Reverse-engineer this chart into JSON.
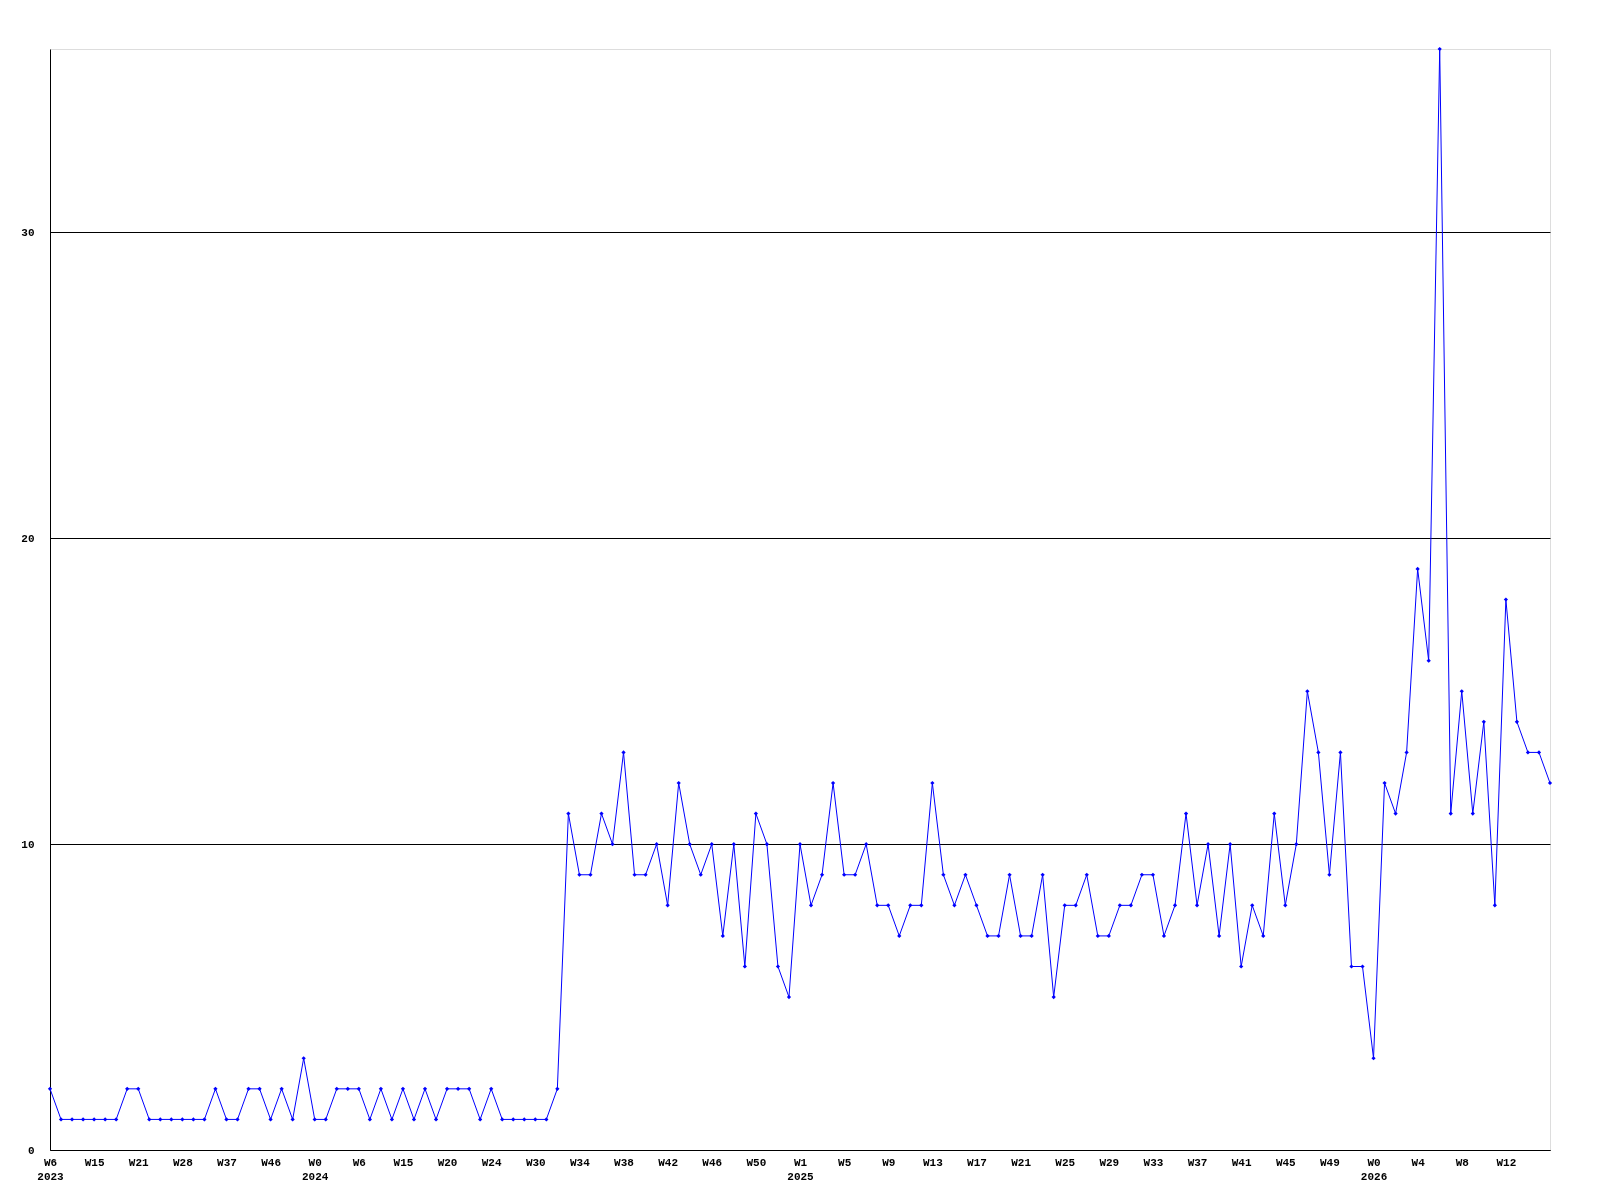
{
  "chart_data": {
    "type": "line",
    "categories": [
      "W6\n2023",
      null,
      null,
      null,
      "W15",
      null,
      null,
      null,
      "W21",
      null,
      null,
      null,
      "W28",
      null,
      null,
      null,
      "W37",
      null,
      null,
      null,
      "W46",
      null,
      null,
      null,
      "W0\n2024",
      null,
      null,
      null,
      "W6",
      null,
      null,
      null,
      "W15",
      null,
      null,
      null,
      "W20",
      null,
      null,
      null,
      "W24",
      null,
      null,
      null,
      "W30",
      null,
      null,
      null,
      "W34",
      null,
      null,
      null,
      "W38",
      null,
      null,
      null,
      "W42",
      null,
      null,
      null,
      "W46",
      null,
      null,
      null,
      "W50",
      null,
      null,
      null,
      "W1\n2025",
      null,
      null,
      null,
      "W5",
      null,
      null,
      null,
      "W9",
      null,
      null,
      null,
      "W13",
      null,
      null,
      null,
      "W17",
      null,
      null,
      null,
      "W21",
      null,
      null,
      null,
      "W25",
      null,
      null,
      null,
      "W29",
      null,
      null,
      null,
      "W33",
      null,
      null,
      null,
      "W37",
      null,
      null,
      null,
      "W41",
      null,
      null,
      null,
      "W45",
      null,
      null,
      null,
      "W49",
      null,
      null,
      null,
      "W0\n2026",
      null,
      null,
      null,
      "W4",
      null,
      null,
      null,
      "W8",
      null,
      null,
      null,
      "W12",
      null,
      null,
      null,
      null
    ],
    "series": [
      {
        "color": "#0000ff",
        "values": [
          2,
          1,
          1,
          1,
          1,
          1,
          1,
          2,
          2,
          1,
          1,
          1,
          1,
          1,
          1,
          2,
          1,
          1,
          2,
          2,
          1,
          2,
          1,
          3,
          1,
          1,
          2,
          2,
          2,
          1,
          2,
          1,
          2,
          1,
          2,
          1,
          2,
          2,
          2,
          1,
          2,
          1,
          1,
          1,
          1,
          1,
          2,
          11,
          9,
          9,
          11,
          10,
          13,
          9,
          9,
          10,
          8,
          12,
          10,
          9,
          10,
          7,
          10,
          6,
          11,
          10,
          6,
          5,
          10,
          8,
          9,
          12,
          9,
          9,
          10,
          8,
          8,
          7,
          8,
          8,
          12,
          9,
          8,
          9,
          8,
          7,
          7,
          9,
          7,
          7,
          9,
          5,
          8,
          8,
          9,
          7,
          7,
          8,
          8,
          9,
          9,
          7,
          8,
          11,
          8,
          10,
          7,
          10,
          6,
          8,
          7,
          11,
          8,
          10,
          15,
          13,
          9,
          13,
          6,
          6,
          3,
          12,
          11,
          13,
          19,
          16,
          36,
          11,
          15,
          11,
          14,
          8,
          18,
          14,
          13,
          13,
          12
        ]
      }
    ],
    "ylim": [
      0,
      36
    ],
    "yticks": [
      0,
      10,
      20,
      30
    ],
    "grid": "y",
    "marker": "diamond",
    "line_style": "solid"
  }
}
